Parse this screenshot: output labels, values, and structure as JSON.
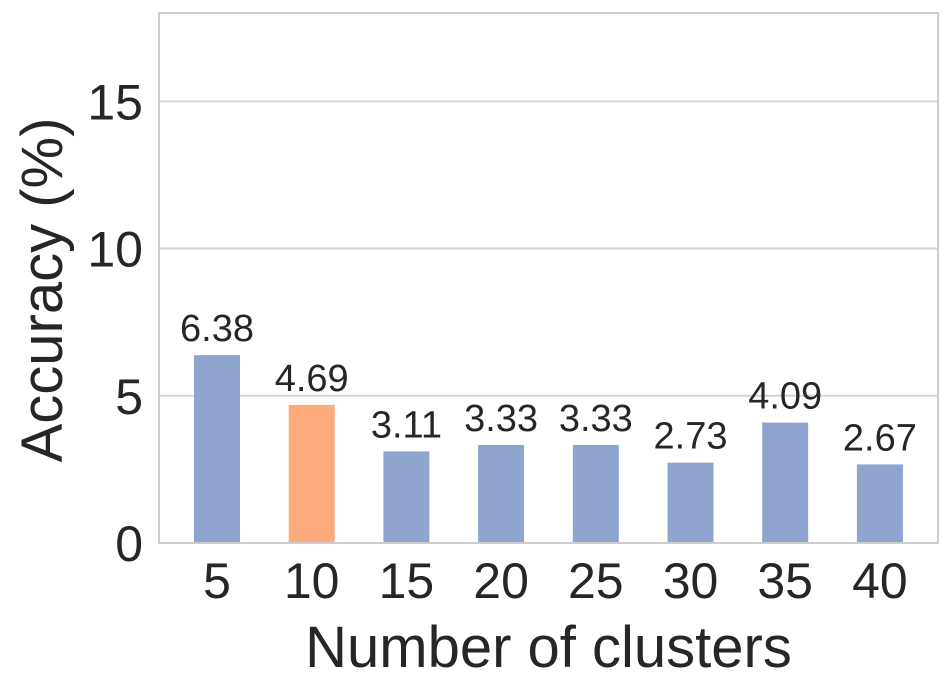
{
  "chart_data": {
    "type": "bar",
    "categories": [
      "5",
      "10",
      "15",
      "20",
      "25",
      "30",
      "35",
      "40"
    ],
    "values": [
      6.38,
      4.69,
      3.11,
      3.33,
      3.33,
      2.73,
      4.09,
      2.67
    ],
    "data_labels": [
      "6.38",
      "4.69",
      "3.11",
      "3.33",
      "3.33",
      "2.73",
      "4.09",
      "2.67"
    ],
    "highlight_index": 1,
    "xlabel": "Number of clusters",
    "ylabel": "Accuracy (%)",
    "ylim": [
      0,
      18
    ],
    "yticks": [
      0,
      5,
      10,
      15
    ],
    "ytick_labels": [
      "0",
      "5",
      "10",
      "15"
    ],
    "grid": true,
    "colors": {
      "bar": "#8fa4cf",
      "highlight": "#fdaa7d",
      "grid": "#d3d3d3",
      "frame": "#cccccc"
    }
  }
}
